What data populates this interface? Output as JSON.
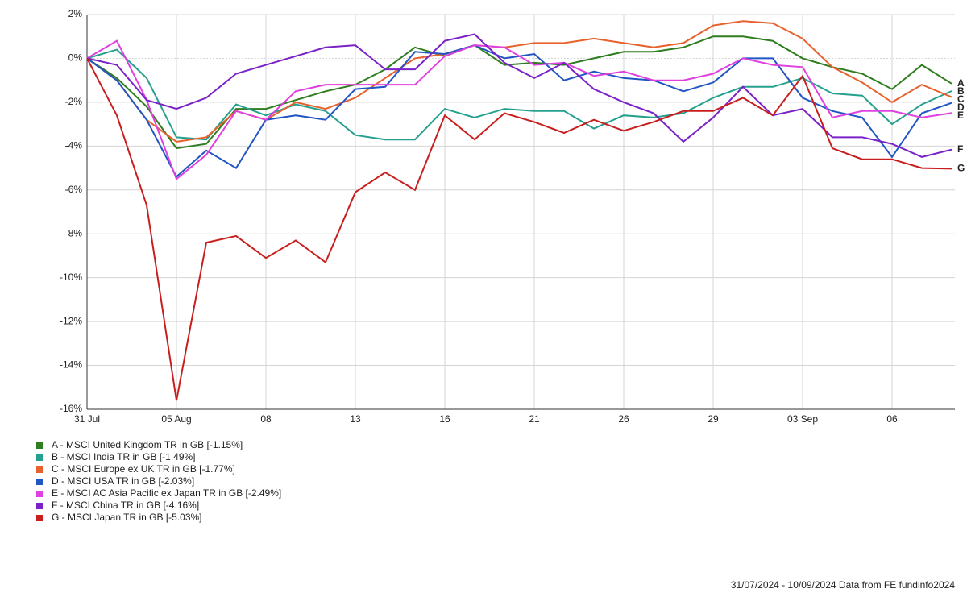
{
  "chart_data": {
    "type": "line",
    "categories": [
      "31 Jul",
      null,
      null,
      "05 Aug",
      null,
      null,
      "08",
      null,
      null,
      "13",
      null,
      null,
      "16",
      null,
      null,
      "21",
      null,
      null,
      "26",
      null,
      null,
      "29",
      null,
      null,
      "03 Sep",
      null,
      null,
      "06",
      null,
      null
    ],
    "ylim": [
      -16,
      2
    ],
    "yticks": [
      {
        "value": 2,
        "label": "2%"
      },
      {
        "value": 0,
        "label": "0%"
      },
      {
        "value": -2,
        "label": "-2%"
      },
      {
        "value": -4,
        "label": "-4%"
      },
      {
        "value": -6,
        "label": "-6%"
      },
      {
        "value": -8,
        "label": "-8%"
      },
      {
        "value": -10,
        "label": "-10%"
      },
      {
        "value": -12,
        "label": "-12%"
      },
      {
        "value": -14,
        "label": "-14%"
      },
      {
        "value": -16,
        "label": "-16%"
      }
    ],
    "grid": true,
    "series": [
      {
        "name": "A - MSCI United Kingdom TR in GB [-1.15%]",
        "end_label": "A",
        "color": "#2e7d1f",
        "values": [
          0,
          -0.9,
          -2.2,
          -4.1,
          -3.9,
          -2.3,
          -2.3,
          -1.9,
          -1.5,
          -1.2,
          -0.5,
          0.5,
          0.1,
          0.6,
          -0.3,
          -0.2,
          -0.3,
          0.0,
          0.3,
          0.3,
          0.5,
          1.0,
          1.0,
          0.8,
          0.0,
          -0.4,
          -0.7,
          -1.4,
          -0.3,
          -1.15
        ]
      },
      {
        "name": "B - MSCI India TR in GB [-1.49%]",
        "end_label": "B",
        "color": "#26a08e",
        "values": [
          0,
          0.4,
          -0.9,
          -3.6,
          -3.7,
          -2.1,
          -2.6,
          -2.1,
          -2.4,
          -3.5,
          -3.7,
          -3.7,
          -2.3,
          -2.7,
          -2.3,
          -2.4,
          -2.4,
          -3.2,
          -2.6,
          -2.7,
          -2.5,
          -1.8,
          -1.3,
          -1.3,
          -0.9,
          -1.6,
          -1.7,
          -3.0,
          -2.1,
          -1.49
        ]
      },
      {
        "name": "C - MSCI Europe ex UK TR in GB [-1.77%]",
        "end_label": "C",
        "color": "#e8602c",
        "values": [
          0,
          -1.0,
          -2.8,
          -3.8,
          -3.6,
          -2.4,
          -2.8,
          -2.0,
          -2.3,
          -1.8,
          -0.9,
          0.0,
          0.2,
          0.6,
          0.5,
          0.7,
          0.7,
          0.9,
          0.7,
          0.5,
          0.7,
          1.5,
          1.7,
          1.6,
          0.9,
          -0.4,
          -1.1,
          -2.0,
          -1.2,
          -1.77
        ]
      },
      {
        "name": "D - MSCI USA TR in GB [-2.03%]",
        "end_label": "D",
        "color": "#2255c4",
        "values": [
          0,
          -1.0,
          -2.8,
          -5.4,
          -4.2,
          -5.0,
          -2.8,
          -2.6,
          -2.8,
          -1.4,
          -1.3,
          0.3,
          0.2,
          0.6,
          0.0,
          0.2,
          -1.0,
          -0.6,
          -0.9,
          -1.0,
          -1.5,
          -1.1,
          0.0,
          0.0,
          -1.8,
          -2.4,
          -2.7,
          -4.5,
          -2.5,
          -2.03
        ]
      },
      {
        "name": "E - MSCI AC Asia Pacific ex Japan TR in GB [-2.49%]",
        "end_label": "E",
        "color": "#e040e0",
        "values": [
          0,
          0.8,
          -1.9,
          -5.5,
          -4.4,
          -2.4,
          -2.8,
          -1.5,
          -1.2,
          -1.2,
          -1.2,
          -1.2,
          0.1,
          0.6,
          0.5,
          -0.3,
          -0.2,
          -0.8,
          -0.6,
          -1.0,
          -1.0,
          -0.7,
          0.0,
          -0.3,
          -0.4,
          -2.7,
          -2.4,
          -2.4,
          -2.7,
          -2.49
        ]
      },
      {
        "name": "F - MSCI China TR in GB [-4.16%]",
        "end_label": "F",
        "color": "#7a22c8",
        "values": [
          0,
          -0.3,
          -1.9,
          -2.3,
          -1.8,
          -0.7,
          -0.3,
          0.1,
          0.5,
          0.6,
          -0.5,
          -0.5,
          0.8,
          1.1,
          -0.2,
          -0.9,
          -0.2,
          -1.4,
          -2.0,
          -2.5,
          -3.8,
          -2.7,
          -1.3,
          -2.6,
          -2.3,
          -3.6,
          -3.6,
          -3.9,
          -4.5,
          -4.16
        ]
      },
      {
        "name": "G - MSCI Japan TR in GB [-5.03%]",
        "end_label": "G",
        "color": "#c81e1e",
        "values": [
          0,
          -2.6,
          -6.7,
          -15.6,
          -8.4,
          -8.1,
          -9.1,
          -8.3,
          -9.3,
          -6.1,
          -5.2,
          -6.0,
          -2.6,
          -3.7,
          -2.5,
          -2.9,
          -3.4,
          -2.8,
          -3.3,
          -2.9,
          -2.4,
          -2.4,
          -1.8,
          -2.6,
          -0.8,
          -4.1,
          -4.6,
          -4.6,
          -5.0,
          -5.03
        ]
      }
    ],
    "footer": "31/07/2024 - 10/09/2024 Data from FE fundinfo2024"
  }
}
